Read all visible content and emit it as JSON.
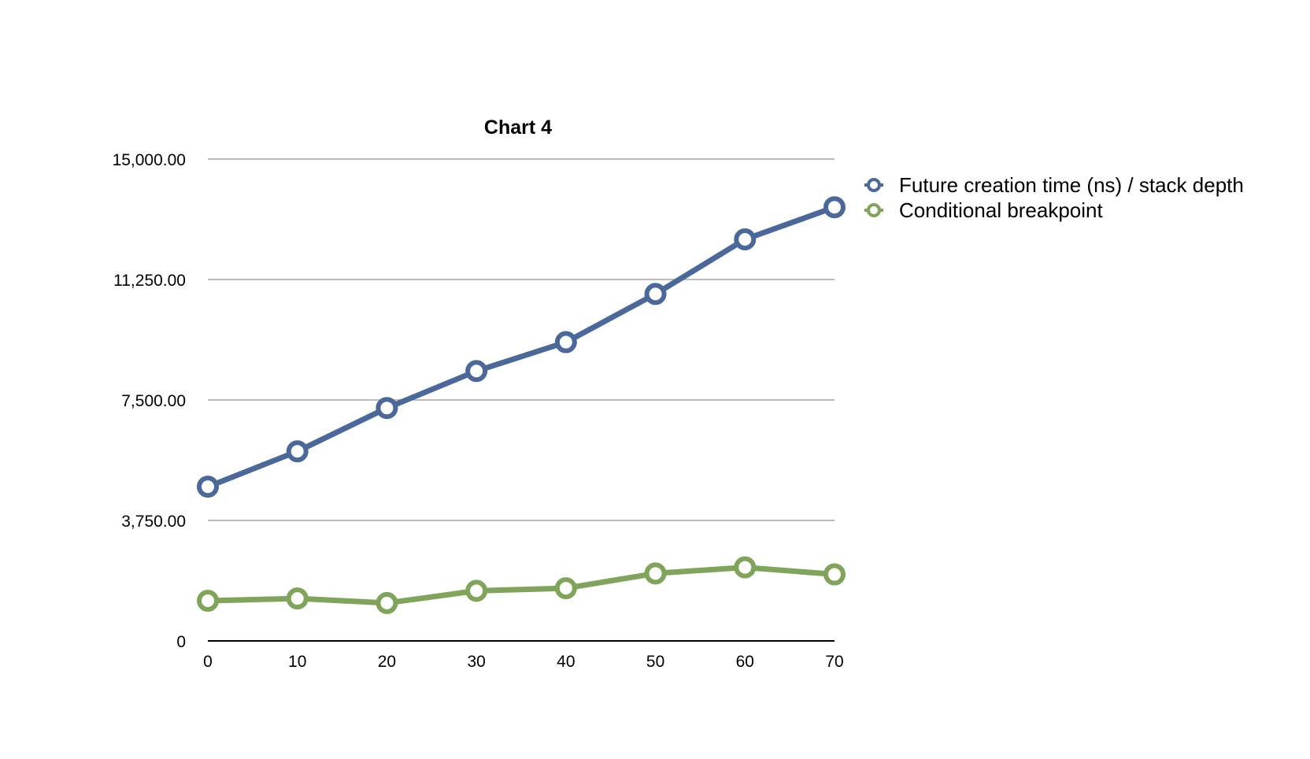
{
  "chart_data": {
    "type": "line",
    "title": "Chart 4",
    "xlabel": "",
    "ylabel": "",
    "x": [
      0,
      10,
      20,
      30,
      40,
      50,
      60,
      70
    ],
    "x_ticks": [
      "0",
      "10",
      "20",
      "30",
      "40",
      "50",
      "60",
      "70"
    ],
    "xlim": [
      0,
      70
    ],
    "ylim": [
      0,
      15000
    ],
    "y_ticks": [
      0,
      3750,
      7500,
      11250,
      15000
    ],
    "y_tick_labels": [
      "0",
      "3,750.00",
      "7,500.00",
      "11,250.00",
      "15,000.00"
    ],
    "grid": true,
    "legend_position": "right-top",
    "series": [
      {
        "name": "Future creation time (ns) / stack depth",
        "color": "#4a6899",
        "values": [
          4800,
          5900,
          7250,
          8400,
          9300,
          10800,
          12500,
          13500
        ]
      },
      {
        "name": "Conditional breakpoint",
        "color": "#7fa45a",
        "values": [
          1250,
          1320,
          1180,
          1560,
          1640,
          2100,
          2290,
          2070
        ]
      }
    ]
  }
}
